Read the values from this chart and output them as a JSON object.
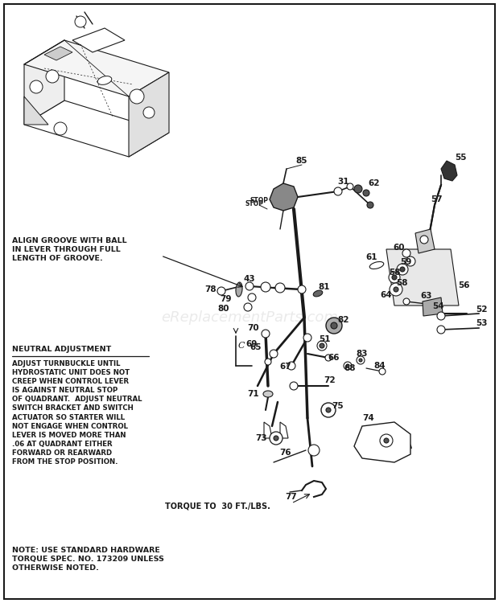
{
  "bg_color": "#ffffff",
  "border_color": "#000000",
  "text_color": "#1a1a1a",
  "watermark": "eReplacementParts.com",
  "watermark_color": "#cccccc",
  "align_note": "ALIGN GROOVE WITH BALL\nIN LEVER THROUGH FULL\nLENGTH OF GROOVE.",
  "neutral_adj_title": "NEUTRAL ADJUSTMENT",
  "neutral_adj_text": "ADJUST TURNBUCKLE UNTIL\nHYDROSTATIC UNIT DOES NOT\nCREEP WHEN CONTROL LEVER\nIS AGAINST NEUTRAL STOP\nOF QUADRANT.  ADJUST NEUTRAL\nSWITCH BRACKET AND SWITCH\nACTUATOR SO STARTER WILL\nNOT ENGAGE WHEN CONTROL\nLEVER IS MOVED MORE THAN\n.06 AT QUADRANT EITHER\nFORWARD OR REARWARD\nFROM THE STOP POSITION.",
  "torque_note": "TORQUE TO  30 FT./LBS.",
  "bottom_note": "NOTE: USE STANDARD HARDWARE\nTORQUE SPEC. NO. 173209 UNLESS\nOTHERWISE NOTED.",
  "figw": 6.2,
  "figh": 7.5,
  "dpi": 100
}
